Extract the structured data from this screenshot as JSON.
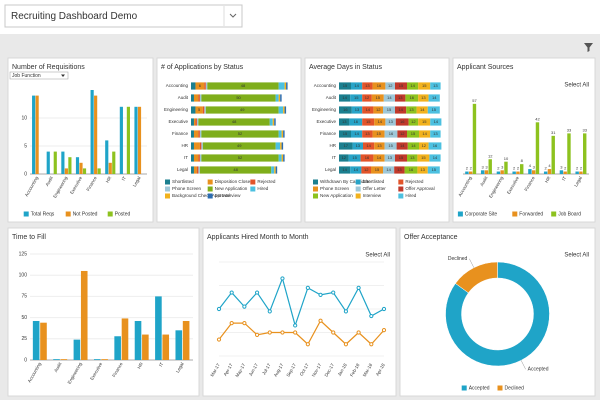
{
  "header": {
    "title": "Recruiting Dashboard Demo"
  },
  "chart_data": [
    {
      "type": "bar",
      "title": "Number of Requisitions",
      "dropdown": "Job Function",
      "categories": [
        "Accounting",
        "Audit",
        "Engineering",
        "Executive",
        "Finance",
        "HR",
        "IT",
        "Legal"
      ],
      "series": [
        {
          "name": "Total Reqs",
          "color": "#1fa4c8",
          "values": [
            14,
            4,
            4,
            3,
            15,
            6,
            12,
            12
          ]
        },
        {
          "name": "Not Posted",
          "color": "#e8911e",
          "values": [
            14,
            0,
            1,
            2,
            14,
            2,
            0,
            12
          ]
        },
        {
          "name": "Posted",
          "color": "#8dc21f",
          "values": [
            0,
            4,
            3,
            1,
            1,
            4,
            12,
            0
          ]
        }
      ],
      "ylim": [
        0,
        15
      ],
      "yticks": [
        0,
        5,
        10
      ]
    },
    {
      "type": "stacked_hbar",
      "title": "# of Applications by Status",
      "categories": [
        "Accounting",
        "Audit",
        "Engineering",
        "Executive",
        "Finance",
        "HR",
        "IT",
        "Legal"
      ],
      "series": [
        {
          "name": "Shortlisted",
          "color": "#1b7f8f",
          "values": [
            3,
            2,
            3,
            2,
            2,
            2,
            2,
            2
          ]
        },
        {
          "name": "Disposition Closed",
          "color": "#e8911e",
          "values": [
            6,
            3,
            5,
            1,
            3,
            4,
            3,
            2
          ]
        },
        {
          "name": "Rejected",
          "color": "#e2542a",
          "values": [
            1,
            1,
            1,
            1,
            1,
            1,
            1,
            1
          ]
        },
        {
          "name": "Phone Screen",
          "color": "#9ec7d8",
          "values": [
            1,
            1,
            1,
            1,
            1,
            1,
            1,
            1
          ]
        },
        {
          "name": "New Application",
          "color": "#7fae1b",
          "values": [
            48,
            50,
            49,
            48,
            52,
            49,
            52,
            48
          ]
        },
        {
          "name": "Hired",
          "color": "#4cc0e0",
          "values": [
            4,
            2,
            3,
            2,
            2,
            3,
            2,
            2
          ]
        },
        {
          "name": "Background Check Approval",
          "color": "#f2b21e",
          "values": [
            1,
            1,
            1,
            1,
            1,
            1,
            1,
            1
          ]
        },
        {
          "name": "1st Interview",
          "color": "#2b6cb0",
          "values": [
            1,
            1,
            1,
            1,
            1,
            1,
            1,
            1
          ]
        }
      ],
      "xlim": [
        0,
        70
      ]
    },
    {
      "type": "stacked_hbar",
      "title": "Average Days in Status",
      "categories": [
        "Accounting",
        "Audit",
        "Engineering",
        "Executive",
        "Finance",
        "HR",
        "IT",
        "Legal"
      ],
      "series": [
        {
          "name": "Withdrawn By Candidate",
          "color": "#1b7f8f",
          "values": [
            15,
            14,
            16,
            13,
            15,
            17,
            12,
            14
          ]
        },
        {
          "name": "Shortlisted",
          "color": "#28a4c8",
          "values": [
            14,
            15,
            13,
            16,
            14,
            13,
            15,
            14
          ]
        },
        {
          "name": "Rejected",
          "color": "#e2542a",
          "values": [
            13,
            12,
            14,
            15,
            13,
            14,
            16,
            12
          ]
        },
        {
          "name": "Phone Screen",
          "color": "#e8911e",
          "values": [
            16,
            15,
            12,
            14,
            15,
            13,
            14,
            15
          ]
        },
        {
          "name": "Offer Letter",
          "color": "#9ec7d8",
          "values": [
            12,
            14,
            15,
            13,
            16,
            15,
            13,
            14
          ]
        },
        {
          "name": "Offer Approval",
          "color": "#c0392b",
          "values": [
            15,
            13,
            14,
            16,
            12,
            14,
            15,
            13
          ]
        },
        {
          "name": "New Application",
          "color": "#8dc21f",
          "values": [
            14,
            16,
            13,
            12,
            15,
            14,
            13,
            16
          ]
        },
        {
          "name": "Interview",
          "color": "#f2b21e",
          "values": [
            15,
            13,
            14,
            15,
            14,
            12,
            15,
            13
          ]
        },
        {
          "name": "Hired",
          "color": "#4cc0e0",
          "values": [
            13,
            14,
            15,
            14,
            13,
            16,
            14,
            15
          ]
        }
      ],
      "xlim": [
        0,
        130
      ]
    },
    {
      "type": "bar",
      "title": "Applicant Sources",
      "link": "Select All",
      "data_labels": true,
      "categories": [
        "Accounting",
        "Audit",
        "Engineering",
        "Executive",
        "Finance",
        "HR",
        "IT",
        "Legal"
      ],
      "series": [
        {
          "name": "Corporate Site",
          "color": "#1fa4c8",
          "values": [
            2,
            3,
            2,
            2,
            4,
            2,
            3,
            2
          ]
        },
        {
          "name": "Forwarded",
          "color": "#e8911e",
          "values": [
            2,
            3,
            3,
            2,
            3,
            4,
            2,
            2
          ]
        },
        {
          "name": "Job Board",
          "color": "#8dc21f",
          "values": [
            57,
            12,
            10,
            8,
            42,
            31,
            33,
            33
          ]
        }
      ],
      "ylim": [
        0,
        65
      ]
    },
    {
      "type": "bar",
      "title": "Time to Fill",
      "categories": [
        "Accounting",
        "Audit",
        "Engineering",
        "Executive",
        "Finance",
        "HR",
        "IT",
        "Legal"
      ],
      "series": [
        {
          "color": "#1fa4c8",
          "values": [
            46,
            1,
            24,
            1,
            28,
            46,
            75,
            35
          ]
        },
        {
          "color": "#e8911e",
          "values": [
            44,
            1,
            105,
            1,
            49,
            30,
            30,
            46
          ]
        }
      ],
      "ylim": [
        0,
        125
      ],
      "yticks": [
        0,
        25,
        50,
        75,
        100,
        125
      ]
    },
    {
      "type": "line",
      "title": "Applicants Hired Month to Month",
      "link": "Select All",
      "categories": [
        "Mar-17",
        "Apr-17",
        "May-17",
        "Jun-17",
        "Jul-17",
        "Aug-17",
        "Sep-17",
        "Oct-17",
        "Nov-17",
        "Dec-17",
        "Jan-18",
        "Feb-18",
        "Mar-18",
        "Apr-18"
      ],
      "series": [
        {
          "color": "#1fa4c8",
          "values": [
            20,
            27,
            21,
            27,
            19,
            33,
            13,
            29,
            26,
            27,
            19,
            29,
            17,
            20
          ]
        },
        {
          "color": "#e8911e",
          "values": [
            7,
            14,
            14,
            9,
            10,
            10,
            10,
            5,
            15,
            10,
            5,
            10,
            5,
            11
          ]
        }
      ],
      "ylim": [
        0,
        40
      ]
    },
    {
      "type": "donut",
      "title": "Offer Acceptance",
      "link": "Select All",
      "categories": [
        "Accepted",
        "Declined"
      ],
      "values": [
        85,
        15
      ],
      "colors": [
        "#1fa4c8",
        "#e8911e"
      ]
    }
  ]
}
